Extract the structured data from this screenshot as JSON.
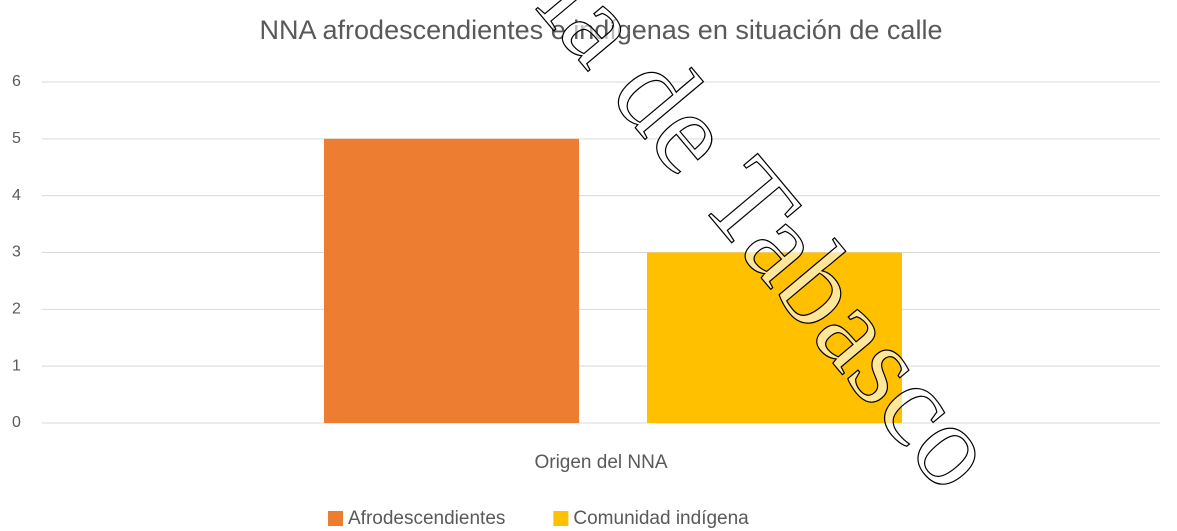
{
  "chart_data": {
    "type": "bar",
    "title": "NNA afrodescendientes e indígenas en situación de calle",
    "categories": [
      "Origen del NNA"
    ],
    "series": [
      {
        "name": "Afrodescendientes",
        "color": "#ed7d31",
        "values": [
          5
        ]
      },
      {
        "name": "Comunidad indígena",
        "color": "#ffc000",
        "values": [
          3
        ]
      }
    ],
    "ylim": [
      0,
      6
    ],
    "yticks": [
      0,
      1,
      2,
      3,
      4,
      5,
      6
    ],
    "grid": true,
    "legend": "bottom",
    "watermark": "ía de Tabasco"
  }
}
